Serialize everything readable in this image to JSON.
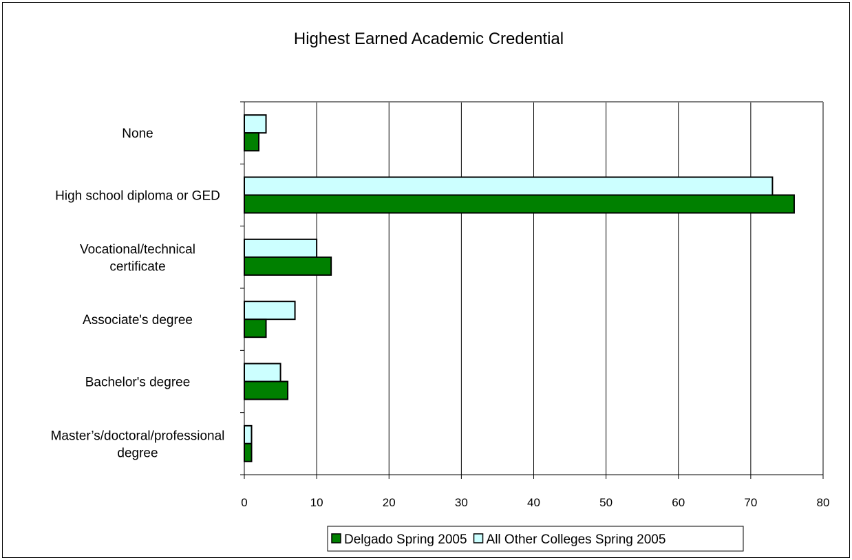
{
  "chart_data": {
    "type": "bar",
    "orientation": "horizontal",
    "title": "Highest Earned Academic Credential",
    "categories": [
      [
        "None"
      ],
      [
        "High school diploma or GED"
      ],
      [
        "Vocational/technical",
        "certificate"
      ],
      [
        "Associate's degree"
      ],
      [
        "Bachelor's degree"
      ],
      [
        "Master’s/doctoral/professional",
        "degree"
      ]
    ],
    "series": [
      {
        "name": "All Other Colleges Spring 2005",
        "values": [
          3,
          73,
          10,
          7,
          5,
          1
        ],
        "color": "#ccffff"
      },
      {
        "name": "Delgado Spring 2005",
        "values": [
          2,
          76,
          12,
          3,
          6,
          1
        ],
        "color": "#008000"
      }
    ],
    "legend_order": [
      "Delgado Spring 2005",
      "All Other Colleges Spring 2005"
    ],
    "xlim": [
      0,
      80
    ],
    "xticks": [
      0,
      10,
      20,
      30,
      40,
      50,
      60,
      70,
      80
    ],
    "grid": "vertical",
    "legend_position": "bottom"
  }
}
